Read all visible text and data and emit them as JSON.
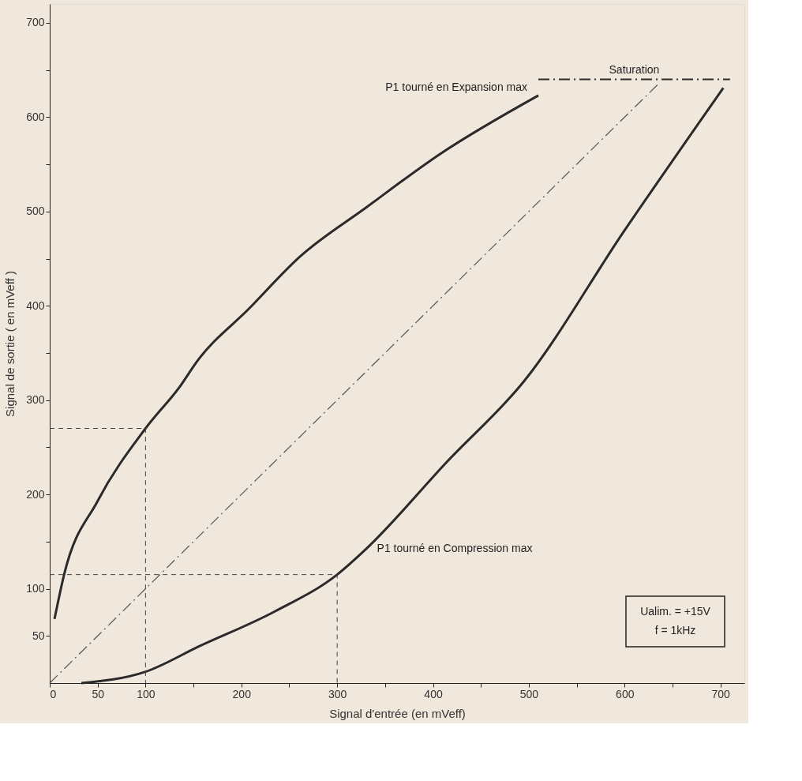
{
  "chart_data": {
    "type": "line",
    "xlabel": "Signal d'entrée (en mVeff)",
    "ylabel": "Signal de sortie ( en mVeff )",
    "xlim": [
      0,
      725
    ],
    "ylim": [
      0,
      720
    ],
    "xticks": [
      0,
      50,
      100,
      {
        "value": 150,
        "label": null
      },
      200,
      {
        "value": 250,
        "label": null
      },
      300,
      {
        "value": 350,
        "label": null
      },
      400,
      {
        "value": 450,
        "label": null
      },
      500,
      {
        "value": 550,
        "label": null
      },
      600,
      {
        "value": 650,
        "label": null
      },
      700
    ],
    "yticks": [
      50,
      100,
      {
        "value": 150,
        "label": null
      },
      200,
      {
        "value": 250,
        "label": null
      },
      300,
      {
        "value": 350,
        "label": null
      },
      400,
      {
        "value": 450,
        "label": null
      },
      500,
      {
        "value": 550,
        "label": null
      },
      600,
      {
        "value": 650,
        "label": null
      },
      700
    ],
    "grid": false,
    "marker": "none",
    "series": [
      {
        "name": "P1 tourné en Expansion max",
        "color": "#2a2a2a",
        "line_style": "solid",
        "x": [
          5,
          15,
          50,
          100,
          137,
          153,
          208,
          261,
          330,
          409,
          510
        ],
        "values": [
          68,
          115,
          193,
          270,
          316,
          340,
          397,
          452,
          504,
          562,
          623
        ]
      },
      {
        "name": "P1 tourné en Compression max",
        "color": "#2a2a2a",
        "line_style": "solid",
        "x": [
          33,
          100,
          156,
          235,
          300,
          330,
          415,
          495,
          600,
          703
        ],
        "values": [
          0,
          12,
          39,
          76,
          115,
          142,
          235,
          320,
          480,
          631
        ]
      },
      {
        "color": "#555555",
        "line_style": "dashdot",
        "x": [
          0,
          635
        ],
        "values": [
          0,
          635
        ]
      },
      {
        "name": "Saturation",
        "color": "#2a2a2a",
        "line_style": "dashdot",
        "x": [
          510,
          710
        ],
        "values": [
          640,
          640
        ]
      },
      {
        "color": "#444444",
        "line_style": "dashed",
        "x": [
          0,
          100,
          100
        ],
        "values": [
          270,
          270,
          0
        ]
      },
      {
        "color": "#444444",
        "line_style": "dashed",
        "x": [
          0,
          300,
          300
        ],
        "values": [
          115,
          115,
          0
        ]
      }
    ],
    "annotations": [
      "Ualim. = +15V",
      "f = 1kHz"
    ]
  }
}
